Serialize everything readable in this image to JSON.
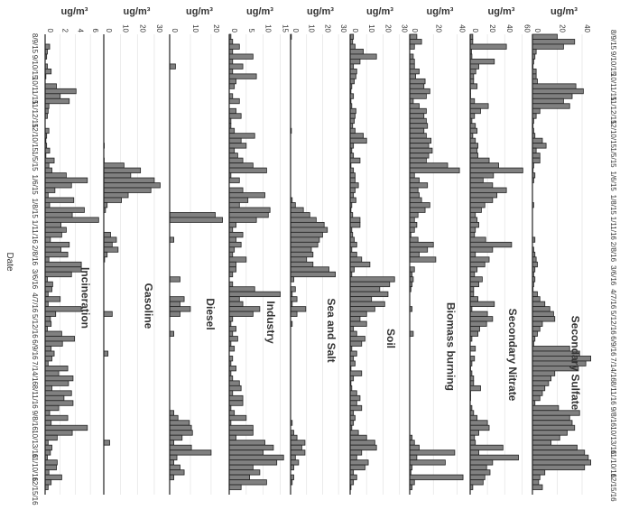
{
  "chart_data": {
    "type": "bar",
    "orientation": "rotated-columns",
    "xlabel": "Date",
    "unit_label": "ug/m³",
    "date_labels": [
      "8/9/15",
      "9/10/15",
      "10/11/15",
      "11/12/15",
      "12/10/15",
      "1/5/15",
      "1/6/15",
      "1/8/15",
      "1/11/16",
      "2/8/16",
      "3/6/16",
      "4/7/16",
      "5/12/16",
      "6/9/16",
      "7/14/16",
      "8/11/16",
      "9/8/16",
      "10/13/16",
      "11/10/16",
      "12/15/16"
    ],
    "panels": [
      {
        "name": "Incineration",
        "ticks": [
          0,
          2,
          4,
          6
        ],
        "max": 7.3,
        "values": [
          0.0,
          0.0,
          0.6,
          0.3,
          0.2,
          0.0,
          0.3,
          0.8,
          0.1,
          0.0,
          1.5,
          4.1,
          2.0,
          3.2,
          0.5,
          0.4,
          0.3,
          0.0,
          0.0,
          0.5,
          0.2,
          0.1,
          0.2,
          0.6,
          0.1,
          1.2,
          0.5,
          0.9,
          2.8,
          5.6,
          3.5,
          1.3,
          0.4,
          3.8,
          0.6,
          5.2,
          3.6,
          7.1,
          2.1,
          2.8,
          2.2,
          0.7,
          3.2,
          2.1,
          3.0,
          0.5,
          4.8,
          4.8,
          3.5,
          0.3,
          1.0,
          0.9,
          0.4,
          2.0,
          0.4,
          4.8,
          1.4,
          0.7,
          0.8,
          0.3,
          2.2,
          3.9,
          2.3,
          0.8,
          1.2,
          0.9,
          0.4,
          3.0,
          1.8,
          3.7,
          3.1,
          0.9,
          3.5,
          2.5,
          3.7,
          1.8,
          0.6,
          3.0,
          0.8,
          5.6,
          3.6,
          1.6,
          0.4,
          0.9,
          0.7,
          0.3,
          1.6,
          1.5,
          0.5,
          2.2,
          0.8,
          0.4,
          0.0
        ]
      },
      {
        "name": "Gasoline",
        "ticks": [
          0,
          10,
          20,
          30
        ],
        "max": 37,
        "values": [
          0.0,
          0.0,
          0.0,
          0.0,
          0.0,
          0.0,
          0.0,
          0.0,
          0.0,
          0.0,
          0.0,
          0.0,
          0.0,
          0.0,
          0.0,
          0.0,
          0.0,
          0.0,
          0.0,
          0.0,
          0.0,
          0.0,
          0.3,
          0.0,
          0.0,
          0.2,
          12.0,
          21.8,
          16.0,
          30.0,
          33.5,
          28.0,
          14.5,
          10.5,
          2.0,
          1.0,
          0.0,
          0.0,
          0.0,
          0.0,
          4.0,
          7.5,
          5.0,
          8.5,
          2.0,
          0.5,
          0.0,
          0.0,
          0.0,
          0.0,
          0.0,
          0.0,
          0.0,
          0.0,
          0.0,
          0.0,
          5.0,
          0.0,
          0.0,
          0.0,
          0.0,
          0.0,
          0.0,
          0.0,
          2.5,
          0.0,
          0.0,
          0.0,
          0.0,
          0.0,
          0.0,
          0.0,
          0.0,
          0.0,
          0.0,
          0.0,
          0.0,
          0.0,
          0.0,
          0.0,
          0.0,
          0.0,
          3.5,
          0.0,
          0.0,
          0.0,
          0.0,
          0.0,
          0.0,
          0.0,
          0.0,
          0.0,
          0.0
        ]
      },
      {
        "name": "Diesel",
        "ticks": [
          0,
          10,
          20
        ],
        "max": 27,
        "values": [
          0.0,
          0.0,
          0.0,
          0.0,
          0.0,
          0.0,
          2.8,
          0.0,
          0.0,
          0.0,
          0.0,
          0.0,
          0.0,
          0.0,
          0.0,
          0.0,
          0.0,
          0.0,
          0.0,
          0.0,
          0.0,
          0.0,
          0.0,
          0.0,
          0.0,
          0.0,
          0.0,
          0.0,
          0.0,
          0.0,
          0.0,
          0.0,
          0.0,
          0.0,
          0.0,
          0.0,
          22.0,
          25.5,
          0.0,
          0.0,
          0.0,
          2.0,
          0.0,
          0.0,
          0.0,
          0.0,
          0.0,
          0.0,
          0.0,
          5.0,
          0.0,
          0.0,
          0.0,
          7.0,
          5.0,
          10.0,
          5.0,
          0.0,
          0.0,
          0.0,
          2.0,
          0.0,
          0.0,
          0.0,
          0.0,
          0.0,
          0.0,
          0.0,
          0.0,
          0.0,
          0.0,
          0.0,
          0.0,
          0.0,
          0.0,
          0.0,
          2.0,
          4.0,
          9.5,
          10.5,
          11.0,
          6.0,
          2.0,
          10.5,
          20.0,
          3.5,
          2.0,
          5.0,
          7.0,
          2.0,
          0.0,
          0.0,
          0.0
        ]
      },
      {
        "name": "Industry",
        "ticks": [
          0,
          5,
          10,
          15
        ],
        "max": 17,
        "values": [
          0.5,
          1.0,
          3.0,
          1.0,
          7.0,
          1.0,
          4.0,
          1.0,
          8.0,
          2.0,
          1.5,
          0.0,
          1.0,
          3.0,
          0.0,
          2.0,
          3.5,
          0.5,
          0.5,
          1.5,
          7.5,
          3.5,
          5.0,
          1.5,
          2.5,
          4.0,
          7.0,
          11.0,
          0.5,
          3.0,
          0.0,
          4.0,
          10.5,
          5.5,
          3.0,
          12.0,
          11.5,
          8.0,
          2.0,
          1.0,
          4.0,
          2.0,
          3.5,
          1.5,
          1.0,
          5.0,
          2.0,
          2.0,
          1.0,
          0.0,
          1.0,
          7.5,
          15.0,
          3.0,
          4.0,
          9.0,
          7.0,
          1.0,
          0.5,
          2.0,
          1.0,
          2.5,
          0.5,
          1.5,
          0.0,
          1.0,
          0.5,
          2.0,
          0.5,
          1.0,
          3.0,
          3.5,
          1.0,
          4.0,
          4.0,
          0.5,
          1.5,
          5.0,
          0.5,
          7.0,
          7.0,
          2.0,
          10.5,
          13.0,
          10.0,
          16.0,
          14.0,
          7.0,
          9.0,
          6.0,
          11.0,
          3.5,
          0.0
        ]
      },
      {
        "name": "Sea and Salt",
        "ticks": [
          0,
          10,
          20,
          30
        ],
        "max": 35,
        "values": [
          0.5,
          0.0,
          0.0,
          0.0,
          0.0,
          0.0,
          0.0,
          0.0,
          0.0,
          0.0,
          0.0,
          0.0,
          0.0,
          0.0,
          0.0,
          0.0,
          0.0,
          0.0,
          0.0,
          0.5,
          0.0,
          0.0,
          0.0,
          0.0,
          0.0,
          0.0,
          0.0,
          0.0,
          0.0,
          0.0,
          0.0,
          0.0,
          0.0,
          1.0,
          3.0,
          8.0,
          12.0,
          16.0,
          21.0,
          23.0,
          20.0,
          18.0,
          17.0,
          13.0,
          14.0,
          10.0,
          14.0,
          24.0,
          28.0,
          2.0,
          0.0,
          3.0,
          1.0,
          4.0,
          1.0,
          9.5,
          4.0,
          0.0,
          1.0,
          0.0,
          0.0,
          0.0,
          0.0,
          0.0,
          0.0,
          0.0,
          0.0,
          0.0,
          0.0,
          0.0,
          0.0,
          0.0,
          0.0,
          0.0,
          0.0,
          0.0,
          0.0,
          0.0,
          1.0,
          0.0,
          2.0,
          4.0,
          9.0,
          7.0,
          9.0,
          3.0,
          5.0,
          2.0,
          0.0,
          2.0,
          1.0,
          0.0,
          0.0
        ]
      },
      {
        "name": "Soil",
        "ticks": [
          0,
          10,
          20,
          30
        ],
        "max": 34,
        "values": [
          2.0,
          1.5,
          3.0,
          8.0,
          16.0,
          6.0,
          2.0,
          4.0,
          3.5,
          2.5,
          1.0,
          0.5,
          2.0,
          0.5,
          1.0,
          3.5,
          3.0,
          2.5,
          1.5,
          3.0,
          8.0,
          10.0,
          2.0,
          1.0,
          2.0,
          6.0,
          0.5,
          2.0,
          3.0,
          3.0,
          5.0,
          3.0,
          2.0,
          3.5,
          1.0,
          0.5,
          1.5,
          6.0,
          6.0,
          1.0,
          1.5,
          2.5,
          4.0,
          1.0,
          4.0,
          7.0,
          12.0,
          2.5,
          1.0,
          27.0,
          24.0,
          18.0,
          23.0,
          13.0,
          21.0,
          15.0,
          10.0,
          6.0,
          10.0,
          2.0,
          4.0,
          9.0,
          7.0,
          1.0,
          4.0,
          2.0,
          3.0,
          0.5,
          7.0,
          2.0,
          0.5,
          1.0,
          4.0,
          6.0,
          4.0,
          7.0,
          2.0,
          3.0,
          2.0,
          1.0,
          5.0,
          10.0,
          15.0,
          16.0,
          7.0,
          4.0,
          11.0,
          9.0,
          2.0,
          4.0,
          2.0,
          0.5,
          0.0
        ]
      },
      {
        "name": "Biomass burning",
        "ticks": [
          0,
          20,
          40
        ],
        "max": 48,
        "values": [
          6.0,
          10.0,
          4.0,
          0.0,
          3.0,
          4.0,
          4.0,
          8.0,
          5.0,
          13.0,
          12.0,
          17.0,
          14.0,
          3.0,
          8.0,
          14.0,
          12.0,
          14.0,
          15.0,
          12.0,
          14.0,
          18.0,
          16.0,
          19.0,
          16.0,
          14.0,
          32.0,
          42.0,
          4.0,
          8.0,
          15.0,
          7.0,
          8.0,
          10.0,
          17.0,
          13.0,
          7.0,
          4.0,
          6.0,
          4.0,
          1.0,
          7.0,
          20.0,
          15.0,
          8.0,
          22.0,
          0.0,
          4.0,
          2.0,
          3.0,
          2.0,
          1.0,
          0.0,
          0.0,
          0.0,
          2.0,
          0.0,
          0.0,
          0.0,
          0.0,
          3.0,
          0.0,
          0.0,
          0.0,
          0.0,
          0.0,
          0.0,
          0.0,
          0.0,
          0.0,
          0.0,
          0.0,
          0.0,
          0.0,
          0.0,
          0.0,
          0.0,
          0.0,
          0.0,
          0.0,
          0.0,
          2.0,
          4.0,
          8.0,
          38.0,
          6.0,
          30.0,
          2.0,
          1.0,
          45.0,
          4.0,
          2.0,
          0.0
        ]
      },
      {
        "name": "Secondary Nitrate",
        "ticks": [
          0,
          20,
          40,
          60
        ],
        "max": 68,
        "values": [
          3.0,
          3.0,
          42.0,
          1.5,
          2.0,
          28.0,
          10.0,
          6.5,
          4.0,
          4.0,
          8.0,
          0.5,
          0.5,
          5.0,
          21.0,
          12.0,
          5.0,
          2.0,
          6.0,
          8.0,
          3.0,
          6.0,
          9.0,
          8.0,
          9.0,
          22.0,
          33.0,
          61.0,
          27.0,
          15.0,
          26.0,
          42.0,
          31.0,
          26.0,
          17.0,
          13.0,
          6.0,
          8.0,
          10.0,
          6.0,
          5.0,
          18.0,
          48.0,
          26.0,
          6.0,
          22.0,
          17.0,
          8.0,
          5.0,
          14.0,
          10.0,
          4.0,
          4.0,
          9.0,
          28.0,
          2.0,
          20.0,
          26.0,
          19.0,
          11.0,
          9.0,
          2.0,
          0.0,
          6.0,
          0.0,
          5.0,
          2.0,
          0.5,
          2.0,
          4.0,
          4.0,
          12.0,
          0.5,
          0.5,
          0.0,
          2.0,
          4.0,
          8.0,
          20.0,
          22.0,
          10.0,
          5.0,
          6.0,
          38.0,
          10.0,
          56.0,
          26.0,
          19.0,
          23.0,
          17.0,
          15.0,
          3.0,
          0.0
        ]
      },
      {
        "name": "Secondary Sulfate",
        "ticks": [
          0,
          20,
          40
        ],
        "max": 48,
        "values": [
          20.0,
          34.0,
          25.0,
          3.0,
          2.0,
          1.0,
          0.5,
          3.0,
          3.0,
          4.0,
          35.0,
          41.0,
          32.0,
          25.0,
          30.0,
          6.0,
          3.0,
          1.0,
          0.5,
          1.0,
          2.0,
          8.0,
          11.0,
          3.0,
          6.0,
          6.0,
          1.0,
          0.5,
          2.0,
          1.0,
          0.0,
          0.0,
          0.0,
          0.0,
          1.0,
          0.0,
          0.0,
          0.0,
          0.0,
          0.0,
          0.0,
          2.0,
          0.0,
          1.0,
          2.0,
          3.0,
          4.0,
          2.0,
          1.0,
          2.0,
          1.0,
          0.5,
          4.0,
          6.0,
          10.0,
          14.0,
          17.0,
          18.0,
          8.0,
          6.0,
          4.0,
          2.0,
          1.0,
          30.0,
          38.0,
          47.0,
          43.0,
          37.0,
          18.0,
          15.0,
          13.0,
          10.0,
          8.0,
          6.0,
          2.0,
          21.0,
          38.0,
          30.0,
          32.0,
          34.0,
          28.0,
          22.0,
          15.0,
          36.0,
          42.0,
          45.0,
          47.0,
          42.0,
          10.0,
          6.0,
          5.0,
          8.0,
          0.0
        ]
      }
    ]
  }
}
